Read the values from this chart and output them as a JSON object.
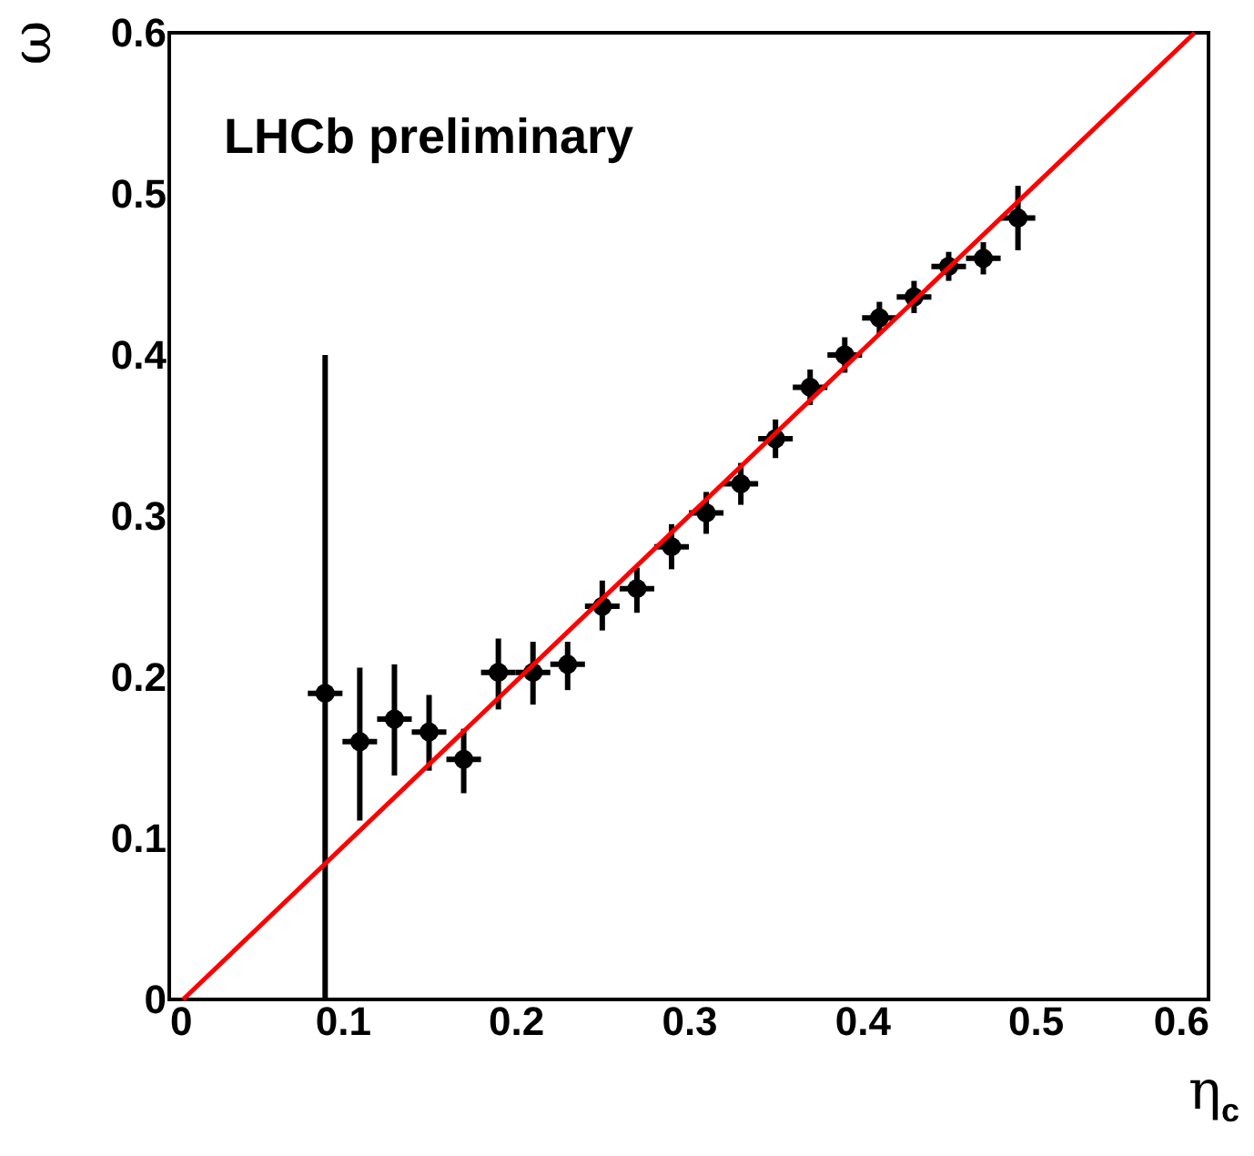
{
  "chart_data": {
    "type": "scatter",
    "xlabel": "η$_{c}$",
    "ylabel": "ω",
    "annotations": [
      "LHCb preliminary"
    ],
    "xlim": [
      0,
      0.6
    ],
    "xticks": [
      0,
      0.1,
      0.2,
      0.3,
      0.4,
      0.5,
      0.6
    ],
    "ylim": [
      0,
      0.6
    ],
    "yticks": [
      0,
      0.1,
      0.2,
      0.3,
      0.4,
      0.5,
      0.6
    ],
    "grid": false,
    "series": [
      {
        "marker": "circle",
        "color": "#000000",
        "x": [
          0.09,
          0.11,
          0.13,
          0.15,
          0.17,
          0.19,
          0.21,
          0.23,
          0.25,
          0.27,
          0.29,
          0.31,
          0.33,
          0.35,
          0.37,
          0.39,
          0.41,
          0.43,
          0.45,
          0.47,
          0.49
        ],
        "values": [
          0.19,
          0.16,
          0.174,
          0.166,
          0.149,
          0.203,
          0.203,
          0.208,
          0.244,
          0.255,
          0.281,
          0.302,
          0.32,
          0.348,
          0.38,
          0.4,
          0.423,
          0.436,
          0.455,
          0.46,
          0.485
        ],
        "errors": [
          [
            0,
            0.4
          ],
          [
            0.111,
            0.206
          ],
          [
            0.139,
            0.208
          ],
          [
            0.142,
            0.189
          ],
          [
            0.128,
            0.168
          ],
          [
            0.18,
            0.224
          ],
          [
            0.183,
            0.222
          ],
          [
            0.192,
            0.222
          ],
          [
            0.229,
            0.26
          ],
          [
            0.24,
            0.268
          ],
          [
            0.267,
            0.295
          ],
          [
            0.289,
            0.315
          ],
          [
            0.307,
            0.333
          ],
          [
            0.336,
            0.36
          ],
          [
            0.369,
            0.391
          ],
          [
            0.389,
            0.411
          ],
          [
            0.413,
            0.433
          ],
          [
            0.426,
            0.446
          ],
          [
            0.446,
            0.464
          ],
          [
            0.45,
            0.47
          ],
          [
            0.465,
            0.505
          ]
        ],
        "xerrors": [
          0.01,
          0.01,
          0.01,
          0.01,
          0.01,
          0.01,
          0.01,
          0.01,
          0.01,
          0.01,
          0.01,
          0.01,
          0.01,
          0.01,
          0.01,
          0.01,
          0.01,
          0.01,
          0.01,
          0.01,
          0.01
        ]
      },
      {
        "type": "line",
        "marker": "none",
        "color": "#ff0000",
        "x": [
          0.008,
          0.592
        ],
        "values": [
          0,
          0.6
        ]
      }
    ]
  }
}
